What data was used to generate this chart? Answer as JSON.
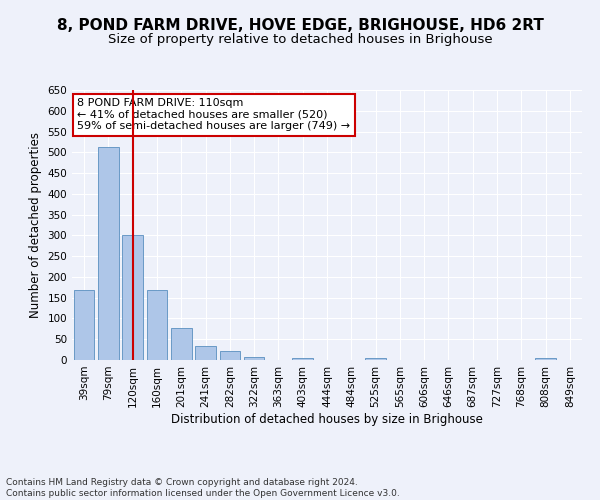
{
  "title": "8, POND FARM DRIVE, HOVE EDGE, BRIGHOUSE, HD6 2RT",
  "subtitle": "Size of property relative to detached houses in Brighouse",
  "xlabel": "Distribution of detached houses by size in Brighouse",
  "ylabel": "Number of detached properties",
  "bar_labels": [
    "39sqm",
    "79sqm",
    "120sqm",
    "160sqm",
    "201sqm",
    "241sqm",
    "282sqm",
    "322sqm",
    "363sqm",
    "403sqm",
    "444sqm",
    "484sqm",
    "525sqm",
    "565sqm",
    "606sqm",
    "646sqm",
    "687sqm",
    "727sqm",
    "768sqm",
    "808sqm",
    "849sqm"
  ],
  "bar_values": [
    168,
    512,
    300,
    168,
    77,
    33,
    22,
    7,
    0,
    5,
    0,
    0,
    5,
    0,
    0,
    0,
    0,
    0,
    0,
    5,
    0
  ],
  "bar_color": "#aec6e8",
  "bar_edge_color": "#5a8fc0",
  "vline_x_idx": 2,
  "vline_color": "#cc0000",
  "annotation_text": "8 POND FARM DRIVE: 110sqm\n← 41% of detached houses are smaller (520)\n59% of semi-detached houses are larger (749) →",
  "annotation_box_color": "#ffffff",
  "annotation_edge_color": "#cc0000",
  "ylim": [
    0,
    650
  ],
  "yticks": [
    0,
    50,
    100,
    150,
    200,
    250,
    300,
    350,
    400,
    450,
    500,
    550,
    600,
    650
  ],
  "footer": "Contains HM Land Registry data © Crown copyright and database right 2024.\nContains public sector information licensed under the Open Government Licence v3.0.",
  "bg_color": "#eef1fa",
  "grid_color": "#ffffff",
  "title_fontsize": 11,
  "subtitle_fontsize": 9.5,
  "tick_fontsize": 7.5,
  "label_fontsize": 8.5,
  "footer_fontsize": 6.5
}
